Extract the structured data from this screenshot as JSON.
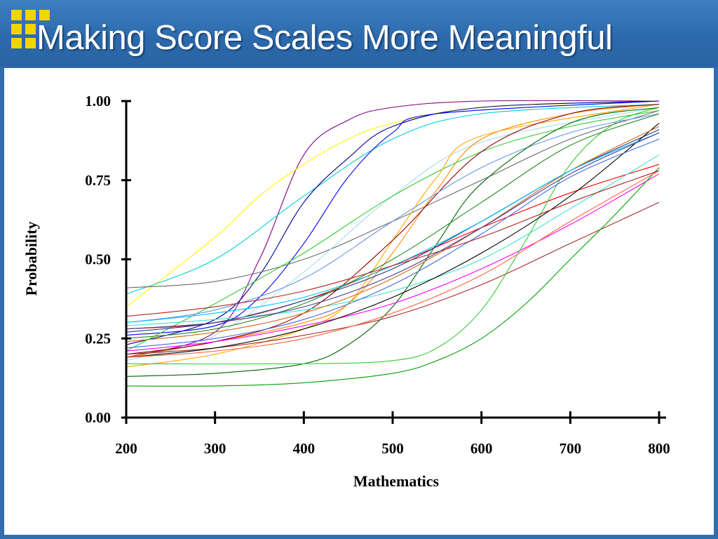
{
  "slide": {
    "title": "Making Score Scales More Meaningful",
    "colors": {
      "header": "#2c69ab",
      "accent": "#f4d400",
      "title_text": "#ffffff",
      "panel": "#ffffff"
    }
  },
  "chart_data": {
    "type": "line",
    "title": "",
    "xlabel": "Mathematics",
    "ylabel": "Probability",
    "xlim": [
      200,
      800
    ],
    "ylim": [
      0,
      1
    ],
    "x_ticks": [
      200,
      300,
      400,
      500,
      600,
      700,
      800
    ],
    "x_tick_labels": [
      "200",
      "300",
      "400",
      "500",
      "600",
      "700",
      "800"
    ],
    "y_ticks": [
      0,
      0.25,
      0.5,
      0.75,
      1
    ],
    "y_tick_labels": [
      "0.00",
      "0.25",
      "0.50",
      "0.75",
      "1.00"
    ],
    "grid": false,
    "legend": "none",
    "series": [
      {
        "color": "#800080",
        "points": [
          [
            200,
            0.19
          ],
          [
            300,
            0.27
          ],
          [
            350,
            0.5
          ],
          [
            400,
            0.83
          ],
          [
            450,
            0.94
          ],
          [
            500,
            0.98
          ],
          [
            600,
            1.0
          ],
          [
            800,
            1.0
          ]
        ]
      },
      {
        "color": "#ffff00",
        "points": [
          [
            200,
            0.35
          ],
          [
            300,
            0.57
          ],
          [
            350,
            0.7
          ],
          [
            400,
            0.8
          ],
          [
            450,
            0.88
          ],
          [
            500,
            0.93
          ],
          [
            600,
            0.98
          ],
          [
            800,
            1.0
          ]
        ]
      },
      {
        "color": "#00ced1",
        "points": [
          [
            200,
            0.39
          ],
          [
            300,
            0.5
          ],
          [
            400,
            0.7
          ],
          [
            500,
            0.88
          ],
          [
            600,
            0.96
          ],
          [
            800,
            0.99
          ]
        ]
      },
      {
        "color": "#00008b",
        "points": [
          [
            200,
            0.23
          ],
          [
            300,
            0.31
          ],
          [
            350,
            0.45
          ],
          [
            400,
            0.68
          ],
          [
            450,
            0.82
          ],
          [
            500,
            0.92
          ],
          [
            600,
            0.98
          ],
          [
            800,
            1.0
          ]
        ]
      },
      {
        "color": "#0000ff",
        "points": [
          [
            200,
            0.26
          ],
          [
            300,
            0.29
          ],
          [
            350,
            0.38
          ],
          [
            400,
            0.55
          ],
          [
            450,
            0.76
          ],
          [
            500,
            0.9
          ],
          [
            550,
            0.96
          ],
          [
            800,
            1.0
          ]
        ]
      },
      {
        "color": "#696969",
        "points": [
          [
            200,
            0.41
          ],
          [
            300,
            0.43
          ],
          [
            400,
            0.5
          ],
          [
            500,
            0.62
          ],
          [
            600,
            0.75
          ],
          [
            700,
            0.88
          ],
          [
            800,
            0.97
          ]
        ]
      },
      {
        "color": "#add8e6",
        "points": [
          [
            200,
            0.18
          ],
          [
            300,
            0.26
          ],
          [
            400,
            0.46
          ],
          [
            500,
            0.7
          ],
          [
            600,
            0.87
          ],
          [
            800,
            0.98
          ]
        ]
      },
      {
        "color": "#32cd32",
        "points": [
          [
            200,
            0.21
          ],
          [
            300,
            0.36
          ],
          [
            400,
            0.52
          ],
          [
            500,
            0.7
          ],
          [
            600,
            0.84
          ],
          [
            700,
            0.92
          ],
          [
            800,
            0.97
          ]
        ]
      },
      {
        "color": "#ff8c00",
        "points": [
          [
            200,
            0.19
          ],
          [
            300,
            0.24
          ],
          [
            400,
            0.3
          ],
          [
            450,
            0.36
          ],
          [
            500,
            0.52
          ],
          [
            550,
            0.72
          ],
          [
            600,
            0.88
          ],
          [
            700,
            0.96
          ],
          [
            800,
            0.99
          ]
        ]
      },
      {
        "color": "#ffa500",
        "points": [
          [
            200,
            0.16
          ],
          [
            300,
            0.2
          ],
          [
            400,
            0.28
          ],
          [
            450,
            0.36
          ],
          [
            500,
            0.56
          ],
          [
            550,
            0.76
          ],
          [
            600,
            0.89
          ],
          [
            800,
            0.99
          ]
        ]
      },
      {
        "color": "#8b0000",
        "points": [
          [
            200,
            0.2
          ],
          [
            300,
            0.24
          ],
          [
            400,
            0.33
          ],
          [
            500,
            0.56
          ],
          [
            600,
            0.84
          ],
          [
            700,
            0.96
          ],
          [
            800,
            0.99
          ]
        ]
      },
      {
        "color": "#6495ed",
        "points": [
          [
            200,
            0.3
          ],
          [
            300,
            0.34
          ],
          [
            400,
            0.44
          ],
          [
            500,
            0.62
          ],
          [
            600,
            0.79
          ],
          [
            700,
            0.9
          ],
          [
            800,
            0.96
          ]
        ]
      },
      {
        "color": "#ff0000",
        "points": [
          [
            200,
            0.28
          ],
          [
            300,
            0.3
          ],
          [
            400,
            0.37
          ],
          [
            500,
            0.48
          ],
          [
            600,
            0.6
          ],
          [
            700,
            0.71
          ],
          [
            800,
            0.8
          ]
        ]
      },
      {
        "color": "#006400",
        "points": [
          [
            200,
            0.13
          ],
          [
            300,
            0.14
          ],
          [
            400,
            0.17
          ],
          [
            450,
            0.23
          ],
          [
            500,
            0.35
          ],
          [
            550,
            0.55
          ],
          [
            600,
            0.74
          ],
          [
            700,
            0.93
          ],
          [
            800,
            0.98
          ]
        ]
      },
      {
        "color": "#1e3a8a",
        "points": [
          [
            200,
            0.27
          ],
          [
            300,
            0.3
          ],
          [
            400,
            0.37
          ],
          [
            500,
            0.47
          ],
          [
            600,
            0.62
          ],
          [
            700,
            0.78
          ],
          [
            800,
            0.91
          ]
        ]
      },
      {
        "color": "#ff00ff",
        "points": [
          [
            200,
            0.21
          ],
          [
            300,
            0.24
          ],
          [
            400,
            0.29
          ],
          [
            500,
            0.36
          ],
          [
            600,
            0.47
          ],
          [
            700,
            0.61
          ],
          [
            800,
            0.77
          ]
        ]
      },
      {
        "color": "#40e0d0",
        "points": [
          [
            200,
            0.29
          ],
          [
            300,
            0.31
          ],
          [
            400,
            0.34
          ],
          [
            500,
            0.4
          ],
          [
            600,
            0.5
          ],
          [
            700,
            0.66
          ],
          [
            800,
            0.83
          ]
        ]
      },
      {
        "color": "#a52a2a",
        "points": [
          [
            200,
            0.2
          ],
          [
            300,
            0.22
          ],
          [
            400,
            0.26
          ],
          [
            500,
            0.32
          ],
          [
            600,
            0.42
          ],
          [
            700,
            0.55
          ],
          [
            800,
            0.68
          ]
        ]
      },
      {
        "color": "#00a000",
        "points": [
          [
            200,
            0.1
          ],
          [
            300,
            0.1
          ],
          [
            400,
            0.11
          ],
          [
            500,
            0.14
          ],
          [
            550,
            0.18
          ],
          [
            600,
            0.25
          ],
          [
            650,
            0.36
          ],
          [
            700,
            0.5
          ],
          [
            750,
            0.64
          ],
          [
            800,
            0.79
          ]
        ]
      },
      {
        "color": "#33cc33",
        "points": [
          [
            200,
            0.17
          ],
          [
            400,
            0.17
          ],
          [
            500,
            0.18
          ],
          [
            550,
            0.22
          ],
          [
            600,
            0.34
          ],
          [
            650,
            0.56
          ],
          [
            700,
            0.8
          ],
          [
            750,
            0.93
          ],
          [
            800,
            0.98
          ]
        ]
      },
      {
        "color": "#000000",
        "points": [
          [
            200,
            0.19
          ],
          [
            300,
            0.22
          ],
          [
            400,
            0.28
          ],
          [
            500,
            0.38
          ],
          [
            600,
            0.52
          ],
          [
            700,
            0.7
          ],
          [
            800,
            0.93
          ]
        ]
      },
      {
        "color": "#d2691e",
        "points": [
          [
            200,
            0.24
          ],
          [
            300,
            0.27
          ],
          [
            400,
            0.33
          ],
          [
            500,
            0.44
          ],
          [
            600,
            0.6
          ],
          [
            700,
            0.78
          ],
          [
            800,
            0.92
          ]
        ]
      },
      {
        "color": "#00bfff",
        "points": [
          [
            200,
            0.3
          ],
          [
            300,
            0.33
          ],
          [
            400,
            0.38
          ],
          [
            500,
            0.48
          ],
          [
            600,
            0.62
          ],
          [
            700,
            0.78
          ],
          [
            800,
            0.9
          ]
        ]
      },
      {
        "color": "#ff6347",
        "points": [
          [
            200,
            0.19
          ],
          [
            300,
            0.21
          ],
          [
            400,
            0.25
          ],
          [
            500,
            0.33
          ],
          [
            600,
            0.45
          ],
          [
            700,
            0.62
          ],
          [
            800,
            0.78
          ]
        ]
      },
      {
        "color": "#4169e1",
        "points": [
          [
            200,
            0.22
          ],
          [
            300,
            0.25
          ],
          [
            400,
            0.31
          ],
          [
            500,
            0.42
          ],
          [
            600,
            0.58
          ],
          [
            700,
            0.76
          ],
          [
            800,
            0.88
          ]
        ]
      },
      {
        "color": "#228b22",
        "points": [
          [
            200,
            0.25
          ],
          [
            300,
            0.28
          ],
          [
            400,
            0.36
          ],
          [
            500,
            0.5
          ],
          [
            600,
            0.68
          ],
          [
            700,
            0.86
          ],
          [
            800,
            0.96
          ]
        ]
      },
      {
        "color": "#b22222",
        "points": [
          [
            200,
            0.32
          ],
          [
            300,
            0.35
          ],
          [
            400,
            0.4
          ],
          [
            500,
            0.48
          ],
          [
            600,
            0.57
          ],
          [
            700,
            0.68
          ],
          [
            800,
            0.78
          ]
        ]
      },
      {
        "color": "#483d8b",
        "points": [
          [
            200,
            0.28
          ],
          [
            300,
            0.3
          ],
          [
            400,
            0.35
          ],
          [
            500,
            0.45
          ],
          [
            600,
            0.6
          ],
          [
            700,
            0.77
          ],
          [
            800,
            0.9
          ]
        ]
      }
    ]
  }
}
